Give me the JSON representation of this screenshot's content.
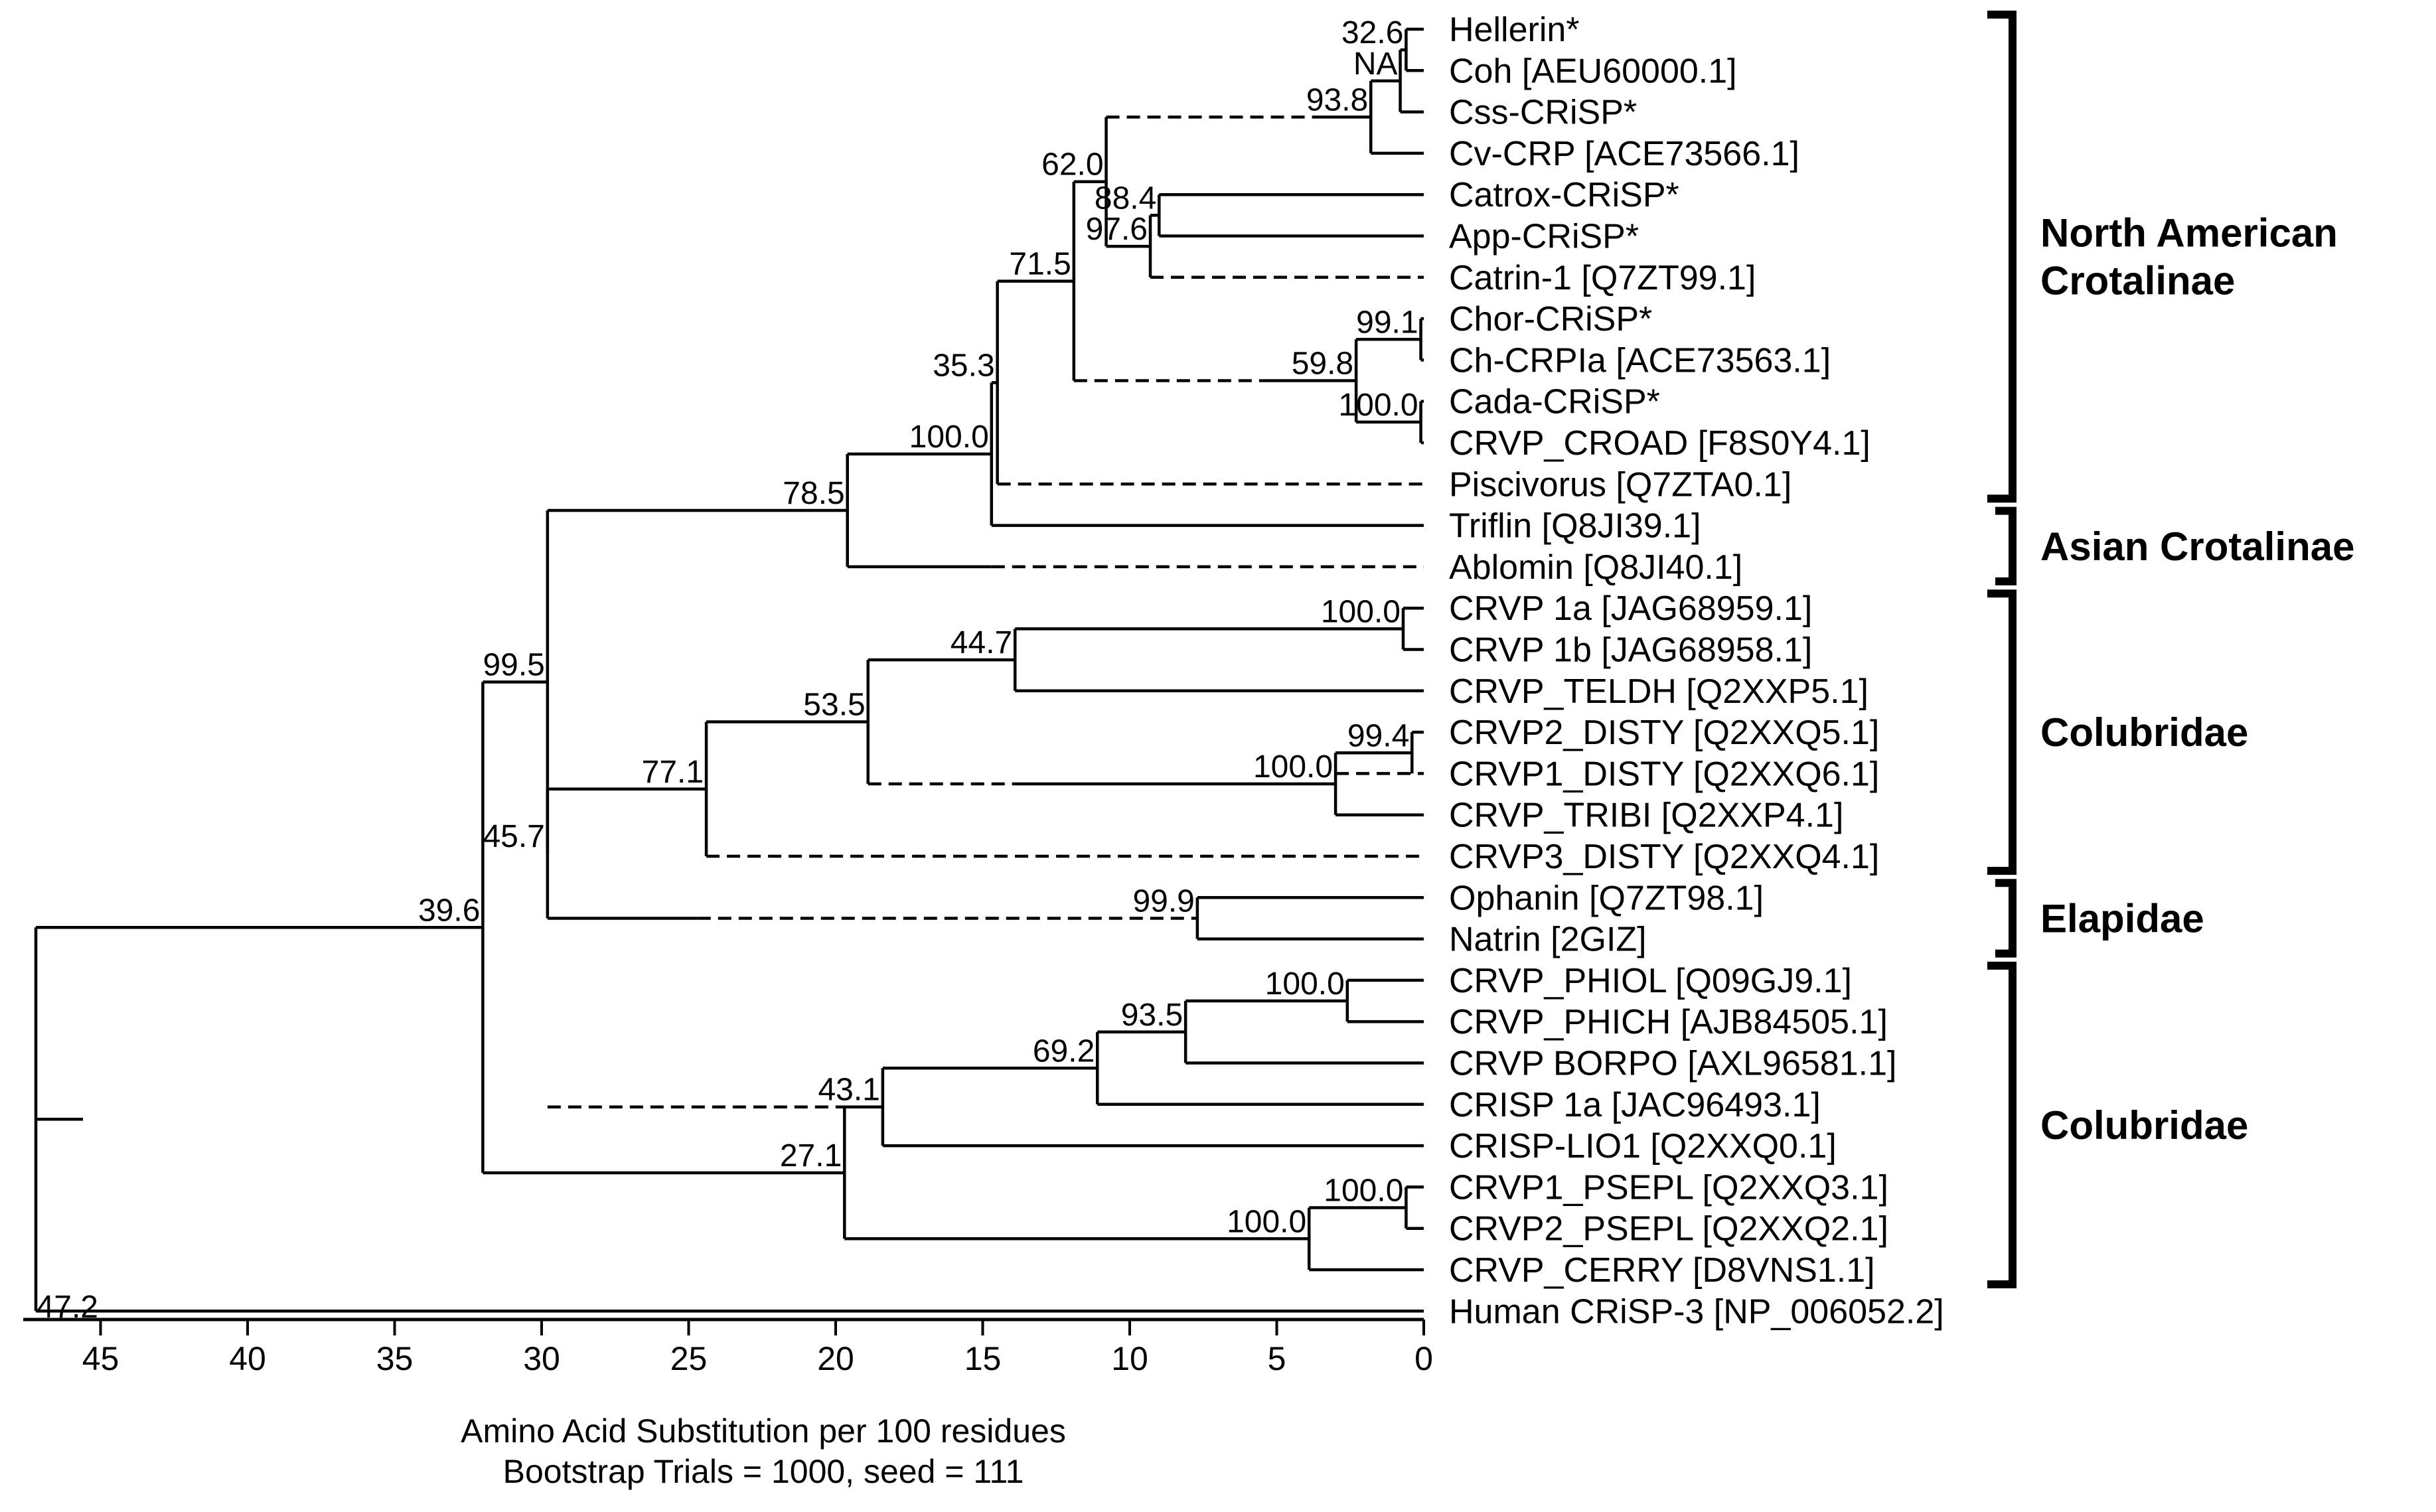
{
  "axis": {
    "ticks": [
      "45",
      "40",
      "35",
      "30",
      "25",
      "20",
      "15",
      "10",
      "5",
      "0"
    ],
    "root_value": "47.2",
    "title": "Amino Acid Substitution per 100 residues",
    "subtitle": "Bootstrap Trials = 1000, seed = 111"
  },
  "leaves": [
    "Hellerin*",
    "Coh [AEU60000.1]",
    "Css-CRiSP*",
    "Cv-CRP [ACE73566.1]",
    "Catrox-CRiSP*",
    "App-CRiSP*",
    "Catrin-1 [Q7ZT99.1]",
    "Chor-CRiSP*",
    "Ch-CRPIa [ACE73563.1]",
    "Cada-CRiSP*",
    "CRVP_CROAD [F8S0Y4.1]",
    "Piscivorus [Q7ZTA0.1]",
    "Triflin [Q8JI39.1]",
    "Ablomin [Q8JI40.1]",
    "CRVP 1a [JAG68959.1]",
    "CRVP 1b [JAG68958.1]",
    "CRVP_TELDH [Q2XXP5.1]",
    "CRVP2_DISTY [Q2XXQ5.1]",
    "CRVP1_DISTY [Q2XXQ6.1]",
    "CRVP_TRIBI [Q2XXP4.1]",
    "CRVP3_DISTY [Q2XXQ4.1]",
    "Ophanin [Q7ZT98.1]",
    "Natrin [2GIZ]",
    "CRVP_PHIOL [Q09GJ9.1]",
    "CRVP_PHICH [AJB84505.1]",
    "CRVP BORPO [AXL96581.1]",
    "CRISP 1a [JAC96493.1]",
    "CRISP-LIO1 [Q2XXQ0.1]",
    "CRVP1_PSEPL [Q2XXQ3.1]",
    "CRVP2_PSEPL [Q2XXQ2.1]",
    "CRVP_CERRY [D8VNS1.1]",
    "Human CRiSP-3 [NP_006052.2]"
  ],
  "bootstrap": {
    "n_hc": "32.6",
    "n_hcc": "NA",
    "n_hccc": "93.8",
    "n_cv": "62.0",
    "n_ca": "88.4",
    "n_cac": "97.6",
    "n_cvcc": "71.5",
    "n_cc": "99.1",
    "n_ch": "59.8",
    "n_cr": "100.0",
    "n_p": "35.3",
    "n_t": "100.0",
    "n_tabl": "78.5",
    "n_1ab": "100.0",
    "n_tel": "44.7",
    "n_dd": "99.4",
    "n_dt": "100.0",
    "n_td": "53.5",
    "n_d3": "77.1",
    "n_on": "99.9",
    "n_el": "45.7",
    "n_cr2": "99.5",
    "n_ph": "100.0",
    "n_bor": "93.5",
    "n_cr1a": "69.2",
    "n_lio": "43.1",
    "n_pp": "100.0",
    "n_cer": "100.0",
    "n_col2": "27.1",
    "n_in": "39.6"
  },
  "groups": [
    [
      "North American",
      "Crotalinae"
    ],
    [
      "Asian Crotalinae"
    ],
    [
      "Colubridae"
    ],
    [
      "Elapidae"
    ],
    [
      "Colubridae"
    ]
  ],
  "chart_data": {
    "type": "dendrogram",
    "xlabel": "Amino Acid Substitution per 100 residues",
    "subtitle": "Bootstrap Trials = 1000, seed = 111",
    "xlim": [
      47.2,
      0
    ],
    "root_distance": 47.2,
    "nodes": [
      {
        "id": "n_hc",
        "children": [
          0,
          1
        ],
        "dist": 0.6
      },
      {
        "id": "n_hcc",
        "children": [
          "n_hc",
          2
        ],
        "dist": 0.8
      },
      {
        "id": "n_hccc",
        "children": [
          "n_hcc",
          3
        ],
        "dist": 1.8
      },
      {
        "id": "n_ca",
        "children": [
          4,
          5
        ],
        "dist": 9.0
      },
      {
        "id": "n_cac",
        "children": [
          "n_ca",
          6
        ],
        "dist": 9.3
      },
      {
        "id": "n_cv",
        "children": [
          "n_hccc",
          "n_cac"
        ],
        "dist": 10.8
      },
      {
        "id": "n_cc",
        "children": [
          7,
          8
        ],
        "dist": 0.1
      },
      {
        "id": "n_cr",
        "children": [
          9,
          10
        ],
        "dist": 0.1
      },
      {
        "id": "n_ch",
        "children": [
          "n_cc",
          "n_cr"
        ],
        "dist": 2.3
      },
      {
        "id": "n_cvcc",
        "children": [
          "n_cv",
          "n_ch"
        ],
        "dist": 11.9
      },
      {
        "id": "n_p",
        "children": [
          "n_cvcc",
          11
        ],
        "dist": 14.5
      },
      {
        "id": "n_t",
        "children": [
          "n_p",
          12
        ],
        "dist": 14.7
      },
      {
        "id": "n_tabl",
        "children": [
          "n_t",
          13
        ],
        "dist": 19.6
      },
      {
        "id": "n_1ab",
        "children": [
          14,
          15
        ],
        "dist": 0.7
      },
      {
        "id": "n_tel",
        "children": [
          "n_1ab",
          16
        ],
        "dist": 13.9
      },
      {
        "id": "n_dd",
        "children": [
          17,
          18
        ],
        "dist": 0.4
      },
      {
        "id": "n_dt",
        "children": [
          "n_dd",
          19
        ],
        "dist": 3.0
      },
      {
        "id": "n_td",
        "children": [
          "n_tel",
          "n_dt"
        ],
        "dist": 18.9
      },
      {
        "id": "n_d3",
        "children": [
          "n_td",
          20
        ],
        "dist": 24.4
      },
      {
        "id": "n_on",
        "children": [
          21,
          22
        ],
        "dist": 7.7
      },
      {
        "id": "n_el",
        "children": [
          "n_d3",
          "n_on"
        ],
        "dist": 29.8
      },
      {
        "id": "n_cr2",
        "children": [
          "n_tabl",
          "n_el"
        ],
        "dist": 29.8
      },
      {
        "id": "n_ph",
        "children": [
          23,
          24
        ],
        "dist": 2.6
      },
      {
        "id": "n_bor",
        "children": [
          "n_ph",
          25
        ],
        "dist": 8.1
      },
      {
        "id": "n_cr1a",
        "children": [
          "n_bor",
          26
        ],
        "dist": 11.1
      },
      {
        "id": "n_lio",
        "children": [
          "n_cr1a",
          27
        ],
        "dist": 18.4
      },
      {
        "id": "n_pp",
        "children": [
          28,
          29
        ],
        "dist": 0.6
      },
      {
        "id": "n_cer",
        "children": [
          "n_pp",
          30
        ],
        "dist": 3.9
      },
      {
        "id": "n_col2",
        "children": [
          "n_lio",
          "n_cer"
        ],
        "dist": 19.7
      },
      {
        "id": "n_in",
        "children": [
          "n_cr2",
          "n_col2"
        ],
        "dist": 32.0
      },
      {
        "id": "n_root",
        "children": [
          "n_in",
          31
        ],
        "dist": 47.2
      }
    ],
    "dashed_segments": [
      {
        "leaf": 2,
        "from": 0.8,
        "to": 0.6
      },
      {
        "node": "n_hccc",
        "from": 10.8,
        "to": 3.5
      },
      {
        "leaf": 6,
        "from": 9.3,
        "to": 0.0
      },
      {
        "node": "n_ch",
        "from": 11.9,
        "to": 5.5
      },
      {
        "leaf": 11,
        "from": 14.5,
        "to": 0.0
      },
      {
        "leaf": 13,
        "from": 14.7,
        "to": 0.0
      },
      {
        "leaf": 18,
        "from": 3.0,
        "to": 0.0
      },
      {
        "node": "n_dt",
        "from": 18.9,
        "to": 14.0
      },
      {
        "leaf": 20,
        "from": 24.4,
        "to": 0.0
      },
      {
        "node": "n_on",
        "from": 24.7,
        "to": 7.7
      },
      {
        "node": "n_lio",
        "from": 29.8,
        "to": 20.0
      }
    ],
    "groups": [
      {
        "label": "North American Crotalinae",
        "leaves": [
          0,
          11
        ]
      },
      {
        "label": "Asian Crotalinae",
        "leaves": [
          12,
          13
        ]
      },
      {
        "label": "Colubridae",
        "leaves": [
          14,
          20
        ]
      },
      {
        "label": "Elapidae",
        "leaves": [
          21,
          22
        ]
      },
      {
        "label": "Colubridae",
        "leaves": [
          23,
          30
        ]
      }
    ]
  }
}
